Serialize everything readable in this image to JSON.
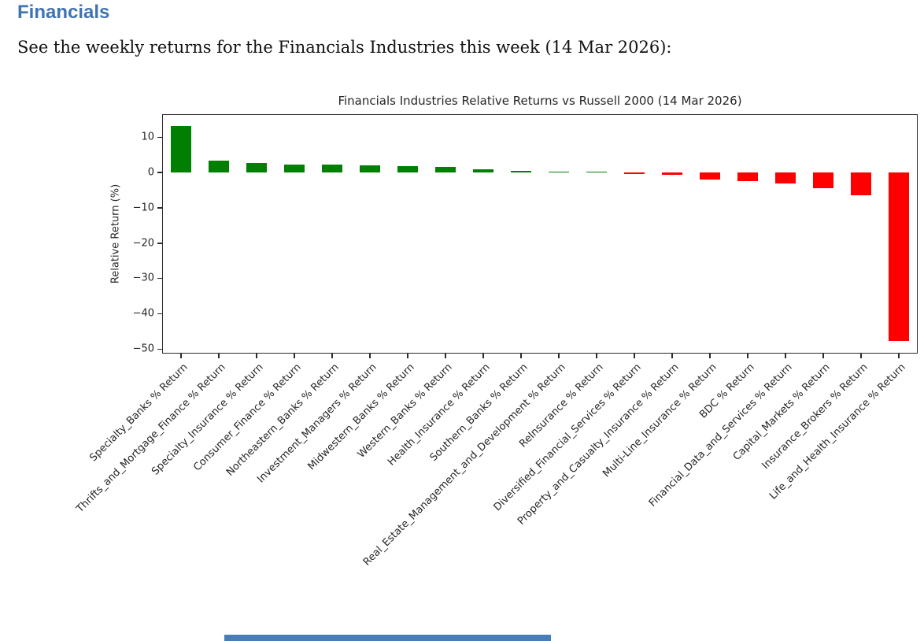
{
  "page": {
    "section_title": "Financials",
    "intro_text": "See the weekly returns for the Financials Industries this week (14 Mar 2026):",
    "accent_color": "#3e74b4",
    "partial_element_color": "#4a7cba"
  },
  "chart_data": {
    "type": "bar",
    "title": "Financials Industries Relative Returns vs Russell 2000 (14 Mar 2026)",
    "xlabel": "",
    "ylabel": "Relative Return (%)",
    "categories": [
      "Specialty_Banks % Return",
      "Thrifts_and_Mortgage_Finance % Return",
      "Specialty_Insurance % Return",
      "Consumer_Finance % Return",
      "Northeastern_Banks % Return",
      "Investment_Managers % Return",
      "Midwestern_Banks % Return",
      "Western_Banks % Return",
      "Health_Insurance % Return",
      "Southern_Banks % Return",
      "Real_Estate_Management_and_Development % Return",
      "ReInsurance % Return",
      "Diversified_Financial_Services % Return",
      "Property_and_Casualty_Insurance % Return",
      "Multi-Line_Insurance % Return",
      "BDC % Return",
      "Financial_Data_and_Services % Return",
      "Capital_Markets % Return",
      "Insurance_Brokers % Return",
      "Life_and_Health_Insurance % Return"
    ],
    "values": [
      13.2,
      3.4,
      2.7,
      2.3,
      2.2,
      2.0,
      1.8,
      1.6,
      0.8,
      0.5,
      0.3,
      0.2,
      -0.5,
      -0.7,
      -2.1,
      -2.5,
      -3.1,
      -4.5,
      -6.5,
      -47.8
    ],
    "positive_color": "#008000",
    "negative_color": "#ff0000",
    "yticks": [
      10,
      0,
      -10,
      -20,
      -30,
      -40,
      -50
    ],
    "ylim": [
      -51.3,
      16.5
    ],
    "grid": false,
    "legend": null,
    "x_tick_rotation_deg": 45
  }
}
